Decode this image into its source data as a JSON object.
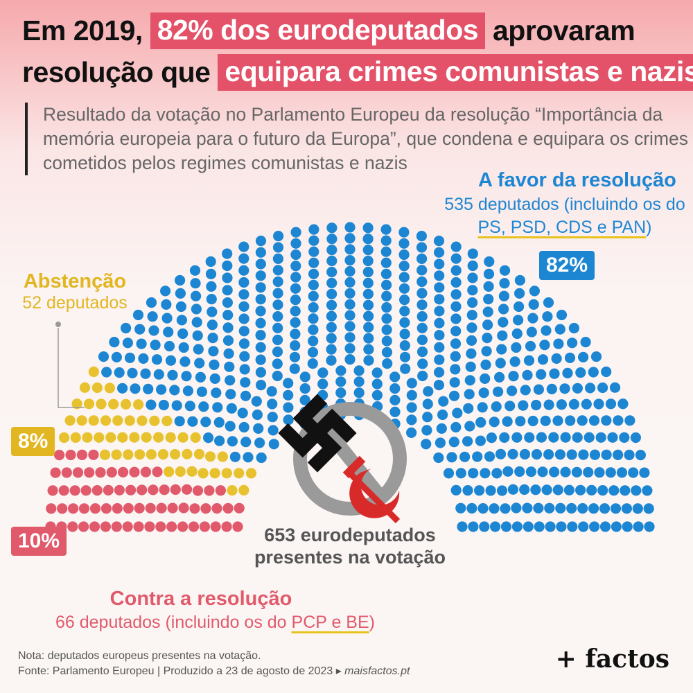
{
  "title": {
    "part1": "Em 2019,",
    "highlight1": "82% dos eurodeputados",
    "part2": "aprovaram",
    "part3": "resolução que",
    "highlight2": "equipara crimes comunistas e nazis"
  },
  "subtitle": "Resultado da votação no Parlamento Europeu da resolução “Importância da memória europeia para o futuro da Europa”, que condena e equipara os crimes cometidos pelos regimes comunistas e nazis",
  "colors": {
    "favor": "#1d86d3",
    "abstencao": "#e8c22e",
    "contra": "#e15a6c",
    "title_highlight": "#e35268"
  },
  "chart_data": {
    "type": "parliament",
    "total_label": "653 eurodeputados",
    "total_label_2": "presentes na votação",
    "series": [
      {
        "name": "A favor da resolução",
        "value": 535,
        "percent_label": "82%",
        "detail": "535 deputados (incluindo os do",
        "detail_parties": "PS, PSD, CDS e PAN",
        "detail_close": ")"
      },
      {
        "name": "Abstenção",
        "value": 52,
        "percent_label": "8%",
        "detail": "52 deputados"
      },
      {
        "name": "Contra a resolução",
        "value": 66,
        "percent_label": "10%",
        "detail": "66 deputados (incluindo os do",
        "detail_parties": "PCP e BE",
        "detail_close": ")"
      }
    ]
  },
  "icons": [
    "prohibited-sign-icon",
    "swastika-icon",
    "hammer-sickle-icon"
  ],
  "footer": {
    "note": "Nota: deputados europeus presentes na votação.",
    "source": "Fonte: Parlamento Europeu | Produzido a 23 de agosto de 2023",
    "url": "maisfactos.pt"
  },
  "brand": "+ factos"
}
